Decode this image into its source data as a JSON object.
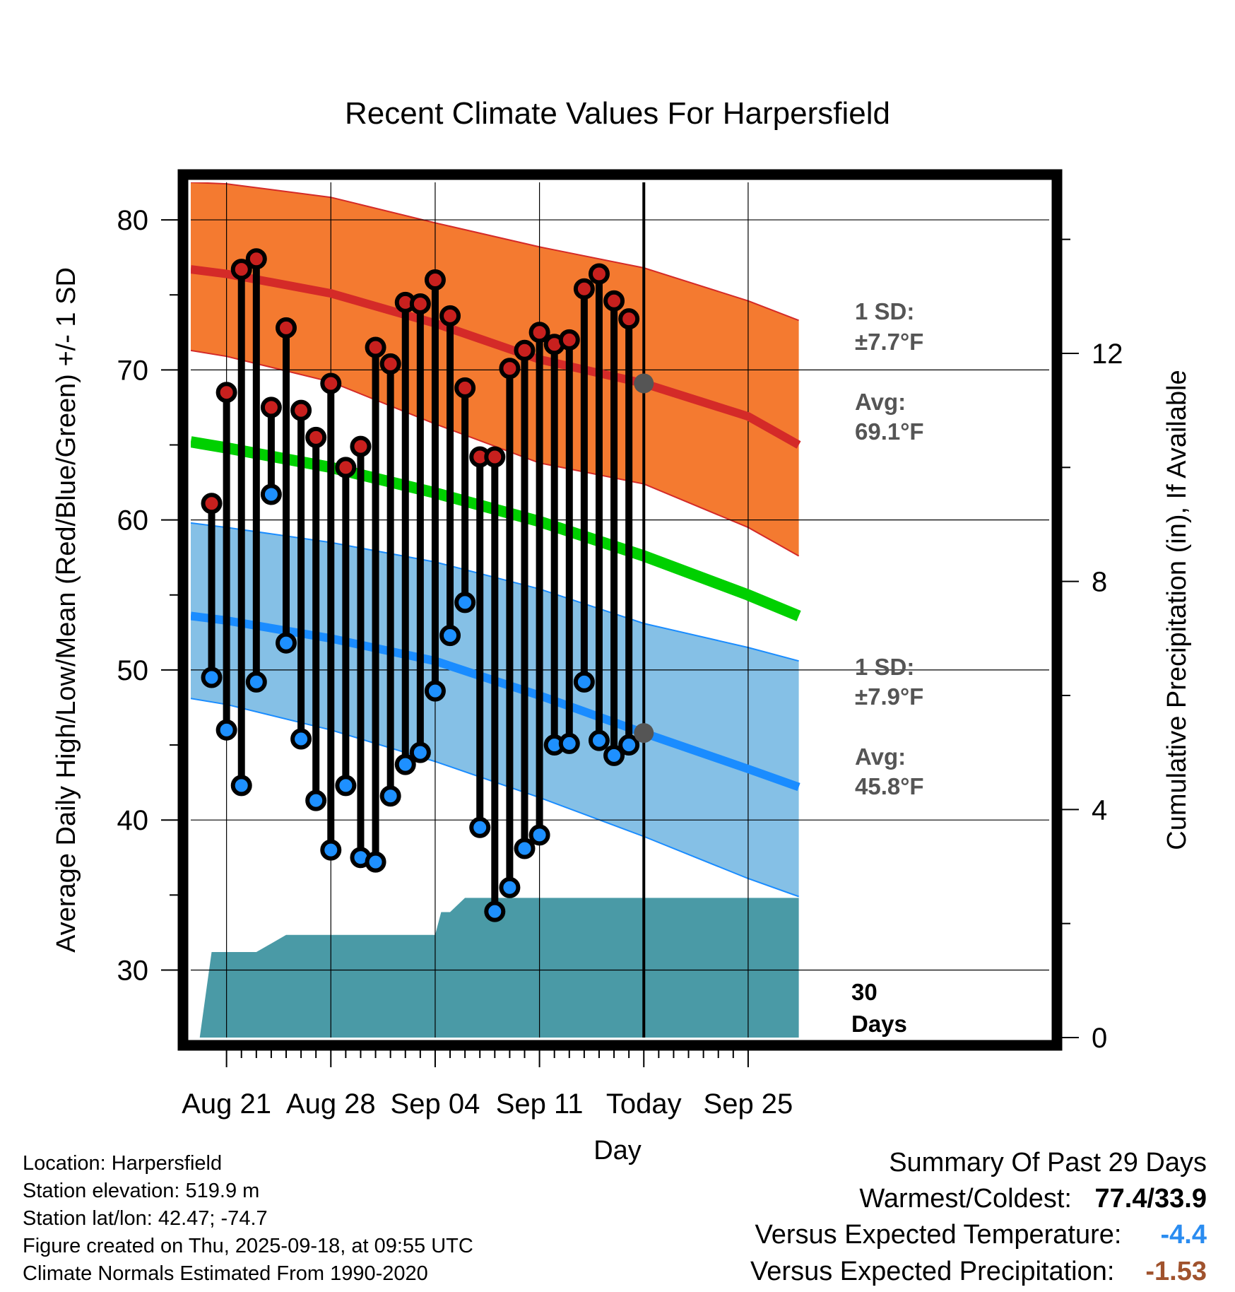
{
  "chart_data": {
    "type": "line",
    "title": "Recent Climate Values For Harpersfield",
    "xlabel": "Day",
    "ylabel": "Average Daily High/Low/Mean (Red/Blue/Green) +/- 1 SD",
    "y2label": "Cumulative Precipitation (in), If Available",
    "ylim": [
      25.5,
      82.5
    ],
    "y2lim": [
      0,
      15
    ],
    "xlim": [
      -2.4,
      55.2
    ],
    "yticks": [
      30,
      40,
      50,
      60,
      70,
      80
    ],
    "y2ticks": [
      0,
      4,
      8,
      12
    ],
    "xtick_positions": [
      0,
      7,
      14,
      21,
      28,
      35
    ],
    "xtick_labels": [
      "Aug 21",
      "Aug 28",
      "Sep 04",
      "Sep 11",
      "Today",
      "Sep 25"
    ],
    "today_index": 28,
    "normals_x": [
      -2.4,
      0,
      7,
      14,
      21,
      28,
      35,
      38.4
    ],
    "normal_high": [
      76.7,
      76.4,
      75.1,
      73.1,
      70.7,
      69.1,
      66.9,
      65.0
    ],
    "normal_high_upper": [
      82.5,
      82.4,
      81.5,
      79.8,
      78.2,
      76.8,
      74.6,
      73.3
    ],
    "normal_high_lower": [
      71.3,
      70.9,
      69.2,
      66.4,
      63.8,
      62.4,
      59.5,
      57.6
    ],
    "normal_mean": [
      65.2,
      64.8,
      63.5,
      61.8,
      59.9,
      57.6,
      55.0,
      53.6
    ],
    "normal_low": [
      53.6,
      53.3,
      52.1,
      50.6,
      48.3,
      45.8,
      43.4,
      42.2
    ],
    "normal_low_upper": [
      59.8,
      59.5,
      58.5,
      57.2,
      55.4,
      53.1,
      51.5,
      50.6
    ],
    "normal_low_lower": [
      48.1,
      47.7,
      46.0,
      43.9,
      41.5,
      38.9,
      36.1,
      34.9
    ],
    "days_x": [
      -1,
      0,
      1,
      2,
      3,
      4,
      5,
      6,
      7,
      8,
      9,
      10,
      11,
      12,
      13,
      14,
      15,
      16,
      17,
      18,
      19,
      20,
      21,
      22,
      23,
      24,
      25,
      26,
      27
    ],
    "daily_high": [
      61.1,
      68.5,
      76.7,
      77.4,
      67.5,
      72.8,
      67.3,
      65.5,
      69.1,
      63.5,
      64.9,
      71.5,
      70.4,
      74.5,
      74.4,
      76.0,
      73.6,
      68.8,
      64.2,
      64.2,
      70.1,
      71.3,
      72.5,
      71.7,
      72.0,
      75.4,
      76.4,
      74.6,
      73.4
    ],
    "daily_low": [
      49.5,
      46.0,
      42.3,
      49.2,
      61.7,
      51.8,
      45.4,
      41.3,
      38.0,
      42.3,
      37.5,
      37.2,
      41.6,
      43.7,
      44.5,
      48.6,
      52.3,
      54.5,
      39.5,
      33.9,
      35.5,
      38.1,
      39.0,
      45.0,
      45.1,
      49.2,
      45.3,
      44.3,
      45.0
    ],
    "precip_x": [
      -1.8,
      -1,
      2,
      4,
      7,
      14,
      14.4,
      15,
      16,
      17,
      18,
      38.4
    ],
    "precip_cum": [
      0,
      1.5,
      1.5,
      1.8,
      1.8,
      1.8,
      2.2,
      2.2,
      2.45,
      2.45,
      2.45,
      2.45
    ],
    "high_sd_label": "1 SD:",
    "high_sd_value": "±7.7°F",
    "high_avg_label": "Avg:",
    "high_avg_value": "69.1°F",
    "low_sd_label": "1 SD:",
    "low_sd_value": "±7.9°F",
    "low_avg_label": "Avg:",
    "low_avg_value": "45.8°F",
    "days_label_1": "30",
    "days_label_2": "Days",
    "colors": {
      "high_band": "#f47a30",
      "high_line": "#d42a28",
      "mean_line": "#00d000",
      "low_band": "#85c0e6",
      "low_line": "#1a8cff",
      "precip": "#4a9aa6",
      "annot": "#555555",
      "high_dot": "#c8201e",
      "low_dot": "#1e90ff"
    }
  },
  "info": {
    "location": "Location: Harpersfield",
    "elevation": "Station elevation: 519.9 m",
    "latlon": "Station lat/lon: 42.47; -74.7",
    "created": "Figure created on Thu, 2025-09-18, at 09:55 UTC",
    "normals": "Climate Normals Estimated From 1990-2020"
  },
  "summary": {
    "title": "Summary Of Past 29 Days",
    "warm_cold_label": "Warmest/Coldest:",
    "warm_cold_value": "77.4/33.9",
    "temp_label": "Versus Expected Temperature:",
    "temp_value": "-4.4",
    "temp_color": "#2a8cf0",
    "precip_label": "Versus Expected Precipitation:",
    "precip_value": "-1.53",
    "precip_color": "#a0522d"
  }
}
